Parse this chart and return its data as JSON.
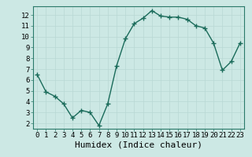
{
  "x": [
    0,
    1,
    2,
    3,
    4,
    5,
    6,
    7,
    8,
    9,
    10,
    11,
    12,
    13,
    14,
    15,
    16,
    17,
    18,
    19,
    20,
    21,
    22,
    23
  ],
  "y": [
    6.5,
    4.9,
    4.5,
    3.8,
    2.5,
    3.2,
    3.0,
    1.8,
    3.8,
    7.3,
    9.8,
    11.2,
    11.7,
    12.4,
    11.9,
    11.8,
    11.8,
    11.6,
    11.0,
    10.8,
    9.4,
    6.9,
    7.7,
    9.4
  ],
  "line_color": "#1a6b5a",
  "marker": "+",
  "marker_size": 4,
  "marker_linewidth": 1.0,
  "xlabel": "Humidex (Indice chaleur)",
  "xlim": [
    -0.5,
    23.5
  ],
  "ylim": [
    1.5,
    12.8
  ],
  "yticks": [
    2,
    3,
    4,
    5,
    6,
    7,
    8,
    9,
    10,
    11,
    12
  ],
  "xticks": [
    0,
    1,
    2,
    3,
    4,
    5,
    6,
    7,
    8,
    9,
    10,
    11,
    12,
    13,
    14,
    15,
    16,
    17,
    18,
    19,
    20,
    21,
    22,
    23
  ],
  "background_color": "#cce8e4",
  "grid_color": "#b8d8d4",
  "tick_label_fontsize": 6.5,
  "xlabel_fontsize": 8,
  "line_width": 1.0,
  "spine_color": "#2a7a6a"
}
